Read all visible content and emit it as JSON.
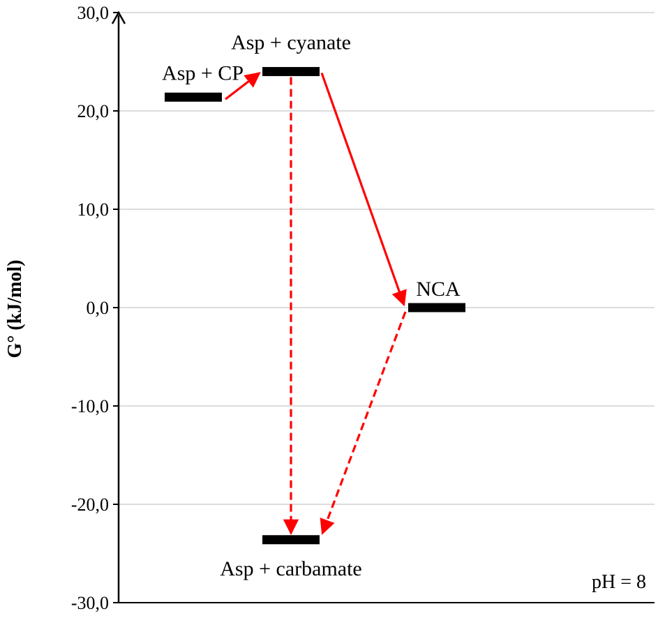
{
  "chart_data": {
    "type": "energy-level-diagram",
    "ylabel": "G° (kJ/mol)",
    "ylim": [
      -30,
      30
    ],
    "yticks": [
      "30,0",
      "20,0",
      "10,0",
      "0,0",
      "-10,0",
      "-20,0",
      "-30,0"
    ],
    "ytick_values": [
      30,
      20,
      10,
      0,
      -10,
      -20,
      -30
    ],
    "grid": true,
    "levels": [
      {
        "id": "asp_cp",
        "label": "Asp + CP",
        "energy": 21.4,
        "column": 1
      },
      {
        "id": "asp_cyanate",
        "label": "Asp + cyanate",
        "energy": 24.0,
        "column": 2
      },
      {
        "id": "nca",
        "label": "NCA",
        "energy": 0.0,
        "column": 3
      },
      {
        "id": "asp_carbamate",
        "label": "Asp + carbamate",
        "energy": -23.6,
        "column": 2
      }
    ],
    "transitions": [
      {
        "from": "asp_cp",
        "to": "asp_cyanate",
        "style": "solid"
      },
      {
        "from": "asp_cyanate",
        "to": "nca",
        "style": "solid"
      },
      {
        "from": "asp_cyanate",
        "to": "asp_carbamate",
        "style": "dashed"
      },
      {
        "from": "nca",
        "to": "asp_carbamate",
        "style": "dashed"
      }
    ],
    "annotation": "pH = 8",
    "colors": {
      "arrow": "#ff0000",
      "level": "#000000",
      "grid": "#d0d0d0",
      "axis": "#000000"
    }
  }
}
